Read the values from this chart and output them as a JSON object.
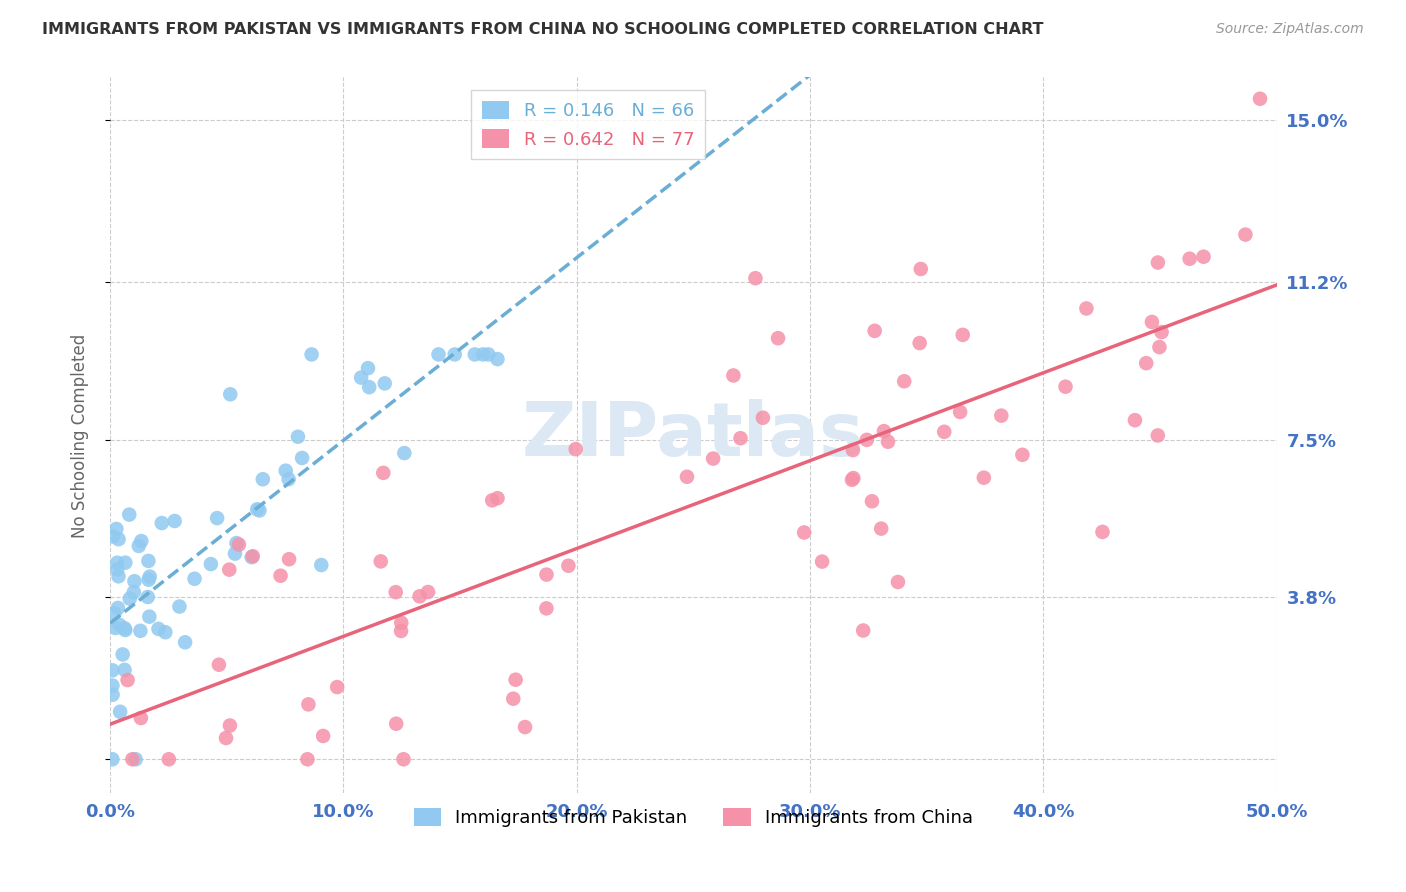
{
  "title": "IMMIGRANTS FROM PAKISTAN VS IMMIGRANTS FROM CHINA NO SCHOOLING COMPLETED CORRELATION CHART",
  "source": "Source: ZipAtlas.com",
  "ylabel": "No Schooling Completed",
  "legend_label1": "Immigrants from Pakistan",
  "legend_label2": "Immigrants from China",
  "r1": 0.146,
  "n1": 66,
  "r2": 0.642,
  "n2": 77,
  "xlim": [
    0.0,
    0.5
  ],
  "ylim": [
    -0.008,
    0.16
  ],
  "yticks": [
    0.0,
    0.038,
    0.075,
    0.112,
    0.15
  ],
  "ytick_labels": [
    "",
    "3.8%",
    "7.5%",
    "11.2%",
    "15.0%"
  ],
  "xticks": [
    0.0,
    0.1,
    0.2,
    0.3,
    0.4,
    0.5
  ],
  "xtick_labels": [
    "0.0%",
    "10.0%",
    "20.0%",
    "30.0%",
    "40.0%",
    "50.0%"
  ],
  "color_pakistan": "#91C9F0",
  "color_china": "#F591A8",
  "color_line_pakistan": "#6aaed6",
  "color_line_china": "#e8647a",
  "background_color": "#ffffff",
  "grid_color": "#cccccc",
  "title_color": "#333333",
  "axis_label_color": "#4472c4",
  "watermark_color": "#dce9f5"
}
